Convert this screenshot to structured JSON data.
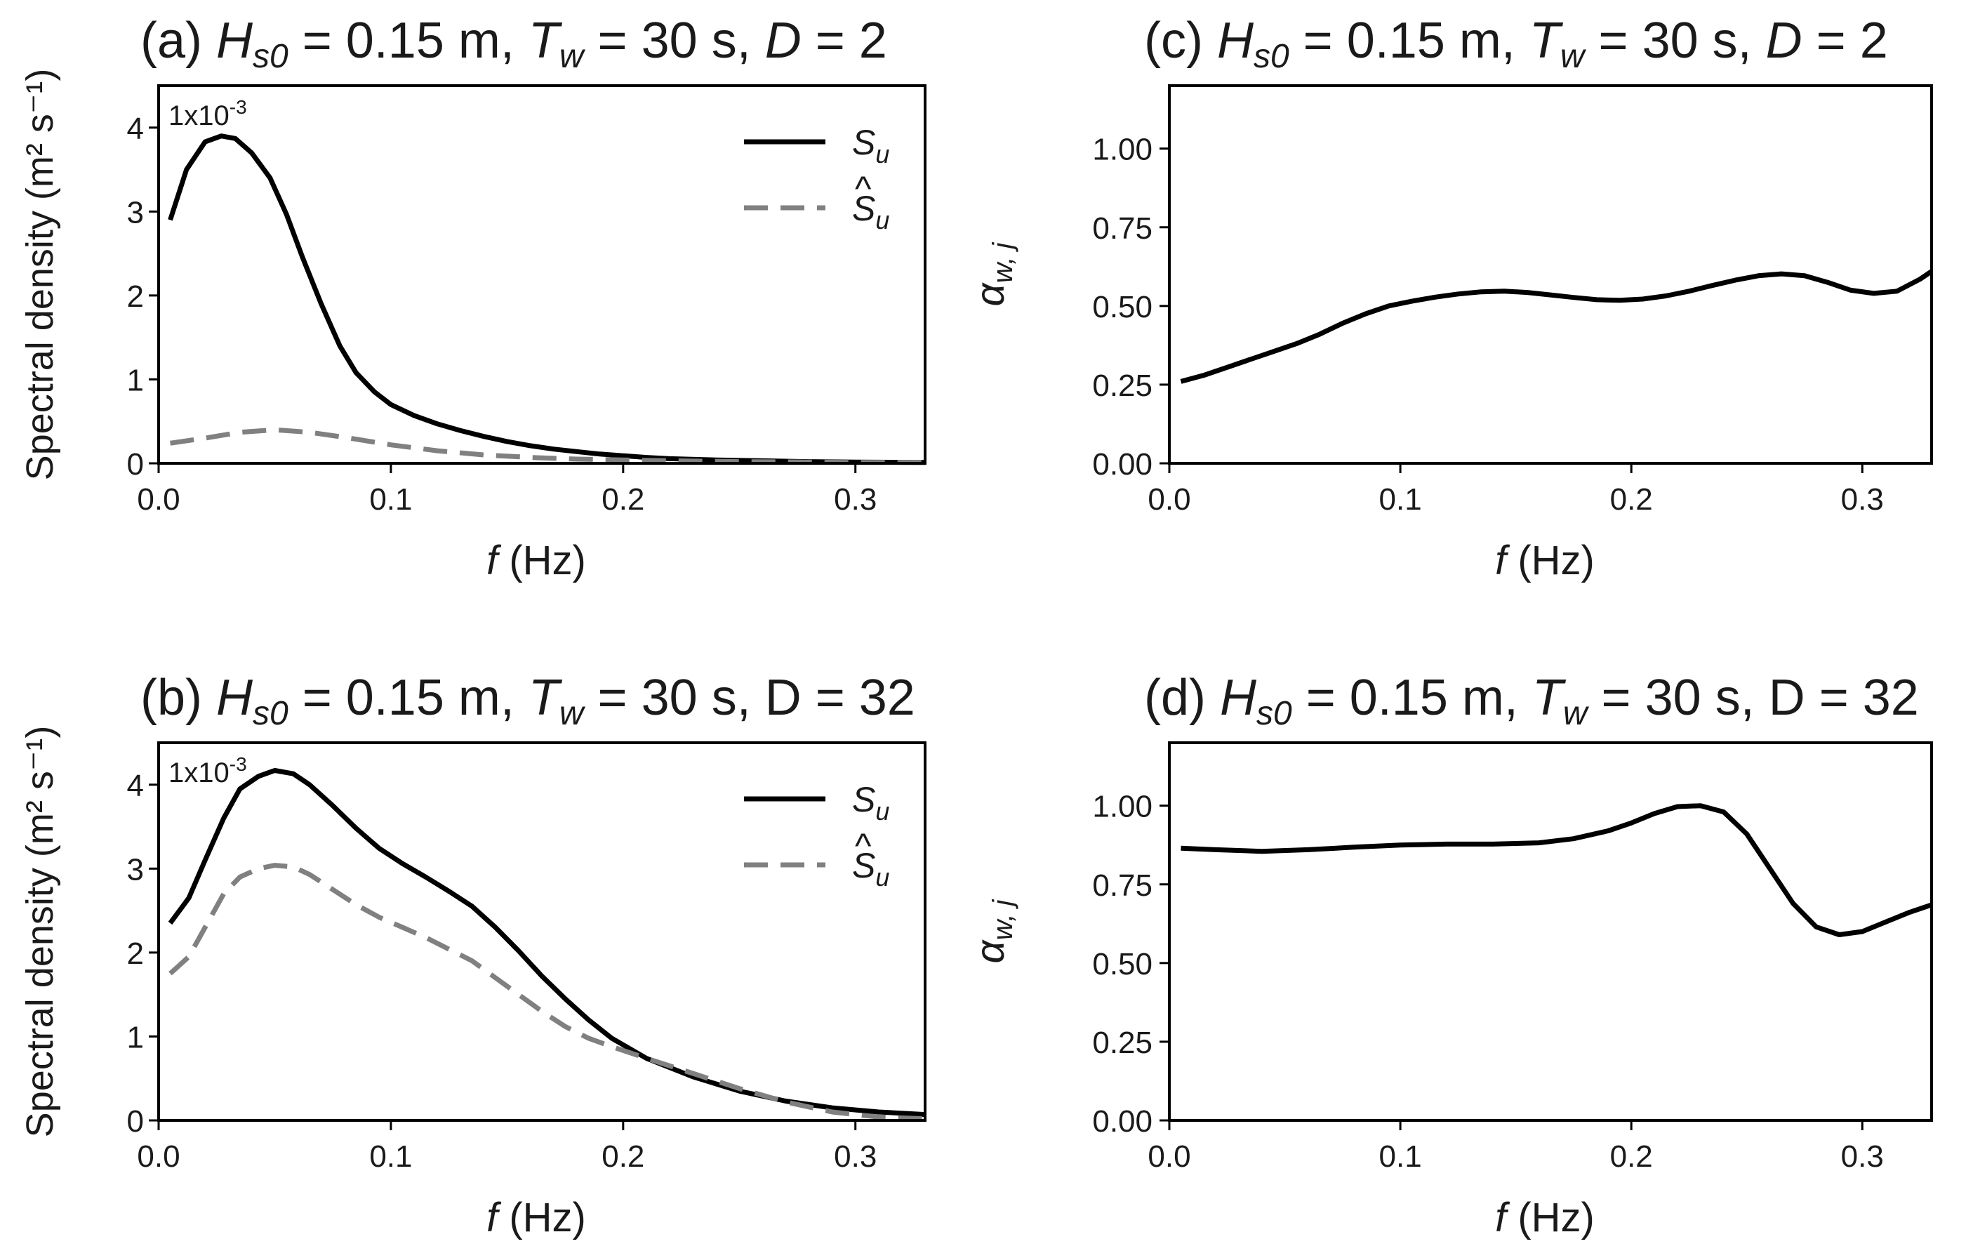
{
  "chart_data": [
    {
      "panel": "(a)",
      "type": "line",
      "title": {
        "prefix": "(a)",
        "parts": [
          {
            "t": "H",
            "i": true
          },
          {
            "t": "s0",
            "i": true,
            "sub": true
          },
          {
            "t": " = 0.15 m, "
          },
          {
            "t": "T",
            "i": true
          },
          {
            "t": "w",
            "i": true,
            "sub": true
          },
          {
            "t": " = 30 s, "
          },
          {
            "t": "D",
            "i": true
          },
          {
            "t": " = 2"
          }
        ]
      },
      "xlabel": {
        "var": "f",
        "unit": "(Hz)"
      },
      "ylabel": "Spectral density (m² s⁻¹)",
      "scale_note": {
        "base": "1x10",
        "exp": "-3"
      },
      "xlim": [
        0.0,
        0.33
      ],
      "ylim": [
        0.0,
        4.5
      ],
      "xticks": [
        0.0,
        0.1,
        0.2,
        0.3
      ],
      "xtick_labels": [
        "0.0",
        "0.1",
        "0.2",
        "0.3"
      ],
      "yticks": [
        0,
        1,
        2,
        3,
        4
      ],
      "ytick_labels": [
        "0",
        "1",
        "2",
        "3",
        "4"
      ],
      "legend": "top-right",
      "series": [
        {
          "name": "S_u",
          "label_main": "S",
          "label_sub": "u",
          "hat": false,
          "color": "#000000",
          "dash": "solid",
          "x": [
            0.005,
            0.012,
            0.02,
            0.027,
            0.033,
            0.04,
            0.048,
            0.055,
            0.062,
            0.07,
            0.078,
            0.085,
            0.093,
            0.1,
            0.11,
            0.12,
            0.13,
            0.14,
            0.15,
            0.16,
            0.17,
            0.18,
            0.19,
            0.2,
            0.21,
            0.22,
            0.24,
            0.26,
            0.28,
            0.3,
            0.33
          ],
          "y": [
            2.9,
            3.5,
            3.83,
            3.9,
            3.87,
            3.7,
            3.4,
            2.97,
            2.45,
            1.9,
            1.4,
            1.08,
            0.85,
            0.7,
            0.57,
            0.47,
            0.39,
            0.32,
            0.26,
            0.21,
            0.17,
            0.14,
            0.11,
            0.09,
            0.07,
            0.055,
            0.04,
            0.03,
            0.02,
            0.015,
            0.01
          ]
        },
        {
          "name": "Ŝ_u",
          "label_main": "S",
          "label_sub": "u",
          "hat": true,
          "color": "#808080",
          "dash": "dashed",
          "x": [
            0.005,
            0.02,
            0.035,
            0.05,
            0.065,
            0.08,
            0.1,
            0.12,
            0.14,
            0.16,
            0.18,
            0.2,
            0.22,
            0.25,
            0.28,
            0.3,
            0.33
          ],
          "y": [
            0.24,
            0.3,
            0.37,
            0.4,
            0.37,
            0.31,
            0.22,
            0.15,
            0.1,
            0.07,
            0.05,
            0.04,
            0.03,
            0.02,
            0.015,
            0.01,
            0.01
          ]
        }
      ]
    },
    {
      "panel": "(b)",
      "type": "line",
      "title": {
        "prefix": "(b)",
        "parts": [
          {
            "t": "H",
            "i": true
          },
          {
            "t": "s0",
            "i": true,
            "sub": true
          },
          {
            "t": " = 0.15 m, "
          },
          {
            "t": "T",
            "i": true
          },
          {
            "t": "w",
            "i": true,
            "sub": true
          },
          {
            "t": " = 30 s, D = 32"
          }
        ]
      },
      "xlabel": {
        "var": "f",
        "unit": "(Hz)"
      },
      "ylabel": "Spectral density (m² s⁻¹)",
      "scale_note": {
        "base": "1x10",
        "exp": "-3"
      },
      "xlim": [
        0.0,
        0.33
      ],
      "ylim": [
        0.0,
        4.5
      ],
      "xticks": [
        0.0,
        0.1,
        0.2,
        0.3
      ],
      "xtick_labels": [
        "0.0",
        "0.1",
        "0.2",
        "0.3"
      ],
      "yticks": [
        0,
        1,
        2,
        3,
        4
      ],
      "ytick_labels": [
        "0",
        "1",
        "2",
        "3",
        "4"
      ],
      "legend": "top-right",
      "series": [
        {
          "name": "S_u",
          "label_main": "S",
          "label_sub": "u",
          "hat": false,
          "color": "#000000",
          "dash": "solid",
          "x": [
            0.005,
            0.013,
            0.02,
            0.028,
            0.035,
            0.043,
            0.05,
            0.058,
            0.065,
            0.075,
            0.085,
            0.095,
            0.105,
            0.115,
            0.125,
            0.135,
            0.145,
            0.155,
            0.165,
            0.175,
            0.185,
            0.195,
            0.21,
            0.23,
            0.25,
            0.27,
            0.29,
            0.31,
            0.33
          ],
          "y": [
            2.35,
            2.65,
            3.1,
            3.6,
            3.95,
            4.1,
            4.17,
            4.13,
            4.0,
            3.75,
            3.48,
            3.24,
            3.06,
            2.9,
            2.73,
            2.55,
            2.3,
            2.02,
            1.72,
            1.45,
            1.2,
            0.98,
            0.74,
            0.52,
            0.35,
            0.23,
            0.15,
            0.1,
            0.07
          ]
        },
        {
          "name": "Ŝ_u",
          "label_main": "S",
          "label_sub": "u",
          "hat": true,
          "color": "#808080",
          "dash": "dashed",
          "x": [
            0.005,
            0.013,
            0.02,
            0.028,
            0.035,
            0.043,
            0.05,
            0.058,
            0.065,
            0.075,
            0.085,
            0.095,
            0.105,
            0.115,
            0.125,
            0.135,
            0.145,
            0.155,
            0.165,
            0.175,
            0.185,
            0.195,
            0.21,
            0.23,
            0.25,
            0.27,
            0.29,
            0.31,
            0.33
          ],
          "y": [
            1.75,
            1.95,
            2.3,
            2.7,
            2.9,
            3.0,
            3.04,
            3.02,
            2.93,
            2.75,
            2.57,
            2.42,
            2.3,
            2.18,
            2.04,
            1.9,
            1.7,
            1.5,
            1.3,
            1.12,
            0.98,
            0.88,
            0.74,
            0.56,
            0.38,
            0.22,
            0.1,
            0.04,
            0.02
          ]
        }
      ]
    },
    {
      "panel": "(c)",
      "type": "line",
      "title": {
        "prefix": "(c)",
        "parts": [
          {
            "t": "H",
            "i": true
          },
          {
            "t": "s0",
            "i": true,
            "sub": true
          },
          {
            "t": " = 0.15 m, "
          },
          {
            "t": "T",
            "i": true
          },
          {
            "t": "w",
            "i": true,
            "sub": true
          },
          {
            "t": " = 30 s, "
          },
          {
            "t": "D",
            "i": true
          },
          {
            "t": " = 2"
          }
        ]
      },
      "xlabel": {
        "var": "f",
        "unit": "(Hz)"
      },
      "ylabel": {
        "main": "α",
        "sub": "w, j"
      },
      "xlim": [
        0.0,
        0.33
      ],
      "ylim": [
        0.0,
        1.2
      ],
      "xticks": [
        0.0,
        0.1,
        0.2,
        0.3
      ],
      "xtick_labels": [
        "0.0",
        "0.1",
        "0.2",
        "0.3"
      ],
      "yticks": [
        0.0,
        0.25,
        0.5,
        0.75,
        1.0
      ],
      "ytick_labels": [
        "0.00",
        "0.25",
        "0.50",
        "0.75",
        "1.00"
      ],
      "series": [
        {
          "name": "",
          "color": "#000000",
          "dash": "solid",
          "x": [
            0.005,
            0.015,
            0.025,
            0.035,
            0.045,
            0.055,
            0.065,
            0.075,
            0.085,
            0.095,
            0.105,
            0.115,
            0.125,
            0.135,
            0.145,
            0.155,
            0.165,
            0.175,
            0.185,
            0.195,
            0.205,
            0.215,
            0.225,
            0.235,
            0.245,
            0.255,
            0.265,
            0.275,
            0.285,
            0.295,
            0.305,
            0.315,
            0.325,
            0.33
          ],
          "y": [
            0.26,
            0.28,
            0.305,
            0.33,
            0.355,
            0.38,
            0.41,
            0.445,
            0.475,
            0.5,
            0.515,
            0.528,
            0.538,
            0.545,
            0.547,
            0.543,
            0.535,
            0.527,
            0.52,
            0.518,
            0.522,
            0.532,
            0.547,
            0.565,
            0.582,
            0.596,
            0.602,
            0.596,
            0.575,
            0.55,
            0.54,
            0.547,
            0.585,
            0.61
          ]
        }
      ]
    },
    {
      "panel": "(d)",
      "type": "line",
      "title": {
        "prefix": "(d)",
        "parts": [
          {
            "t": "H",
            "i": true
          },
          {
            "t": "s0",
            "i": true,
            "sub": true
          },
          {
            "t": " = 0.15 m, "
          },
          {
            "t": "T",
            "i": true
          },
          {
            "t": "w",
            "i": true,
            "sub": true
          },
          {
            "t": " = 30 s, D = 32"
          }
        ]
      },
      "xlabel": {
        "var": "f",
        "unit": "(Hz)"
      },
      "ylabel": {
        "main": "α",
        "sub": "w, j"
      },
      "xlim": [
        0.0,
        0.33
      ],
      "ylim": [
        0.0,
        1.2
      ],
      "xticks": [
        0.0,
        0.1,
        0.2,
        0.3
      ],
      "xtick_labels": [
        "0.0",
        "0.1",
        "0.2",
        "0.3"
      ],
      "yticks": [
        0.0,
        0.25,
        0.5,
        0.75,
        1.0
      ],
      "ytick_labels": [
        "0.00",
        "0.25",
        "0.50",
        "0.75",
        "1.00"
      ],
      "series": [
        {
          "name": "",
          "color": "#000000",
          "dash": "solid",
          "x": [
            0.005,
            0.02,
            0.04,
            0.06,
            0.08,
            0.1,
            0.12,
            0.14,
            0.16,
            0.175,
            0.19,
            0.2,
            0.21,
            0.22,
            0.23,
            0.24,
            0.25,
            0.26,
            0.27,
            0.28,
            0.29,
            0.3,
            0.31,
            0.32,
            0.33
          ],
          "y": [
            0.865,
            0.86,
            0.855,
            0.86,
            0.868,
            0.875,
            0.878,
            0.878,
            0.882,
            0.895,
            0.92,
            0.945,
            0.975,
            0.997,
            1.0,
            0.98,
            0.91,
            0.8,
            0.69,
            0.615,
            0.59,
            0.6,
            0.63,
            0.66,
            0.685
          ]
        }
      ]
    }
  ]
}
